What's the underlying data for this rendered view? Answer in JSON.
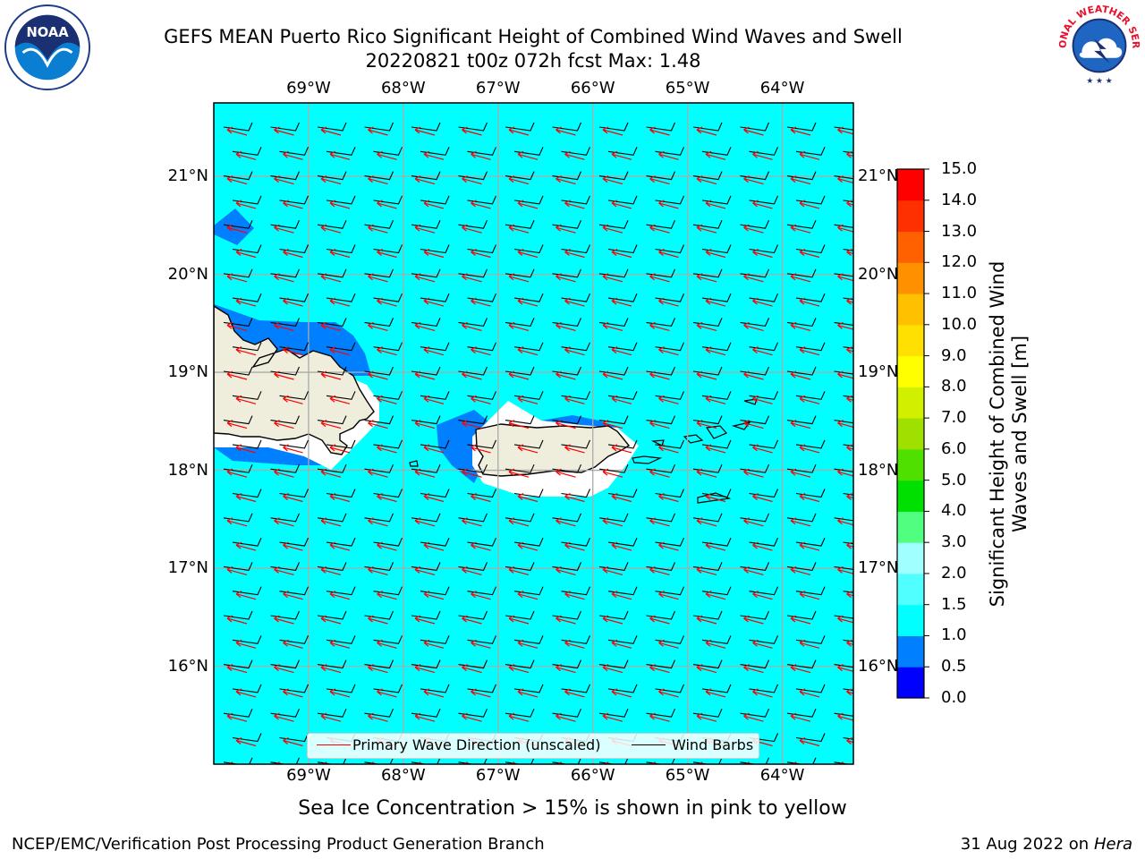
{
  "title": {
    "line1": "GEFS MEAN Puerto Rico Significant Height of Combined Wind Waves and Swell",
    "line2": "20220821 t00z 072h fcst   Max: 1.48"
  },
  "logos": {
    "left": {
      "icon": "noaa-logo-icon",
      "text": "NOAA"
    },
    "right": {
      "icon": "nws-logo-icon",
      "text": "NATIONAL WEATHER SERVICE"
    }
  },
  "map": {
    "lon_range": [
      -70.0,
      -63.25
    ],
    "lat_range": [
      15.0,
      21.75
    ],
    "lon_ticks": [
      {
        "value": -69,
        "label": "69°W"
      },
      {
        "value": -68,
        "label": "68°W"
      },
      {
        "value": -67,
        "label": "67°W"
      },
      {
        "value": -66,
        "label": "66°W"
      },
      {
        "value": -65,
        "label": "65°W"
      },
      {
        "value": -64,
        "label": "64°W"
      }
    ],
    "lat_ticks": [
      {
        "value": 21,
        "label": "21°N"
      },
      {
        "value": 20,
        "label": "20°N"
      },
      {
        "value": 19,
        "label": "19°N"
      },
      {
        "value": 18,
        "label": "18°N"
      },
      {
        "value": 17,
        "label": "17°N"
      },
      {
        "value": 16,
        "label": "16°N"
      }
    ],
    "gridlines": true,
    "ocean_color": "#00ffff",
    "land_color": "#efeedc",
    "wind_direction_from": "east",
    "wave_direction_from": "east-southeast"
  },
  "colorbar": {
    "label": "Significant Height of Combined Wind Waves and Swell [m]",
    "ticks": [
      "0.0",
      "0.5",
      "1.0",
      "1.5",
      "2.0",
      "3.0",
      "4.0",
      "5.0",
      "6.0",
      "7.0",
      "8.0",
      "9.0",
      "10.0",
      "11.0",
      "12.0",
      "13.0",
      "14.0",
      "15.0"
    ],
    "colors": [
      "#0000ff",
      "#0080ff",
      "#00ffff",
      "#50ffff",
      "#a0ffff",
      "#50ff80",
      "#00e000",
      "#50e000",
      "#a0e000",
      "#d0f000",
      "#ffff00",
      "#ffe000",
      "#ffc000",
      "#ff9000",
      "#ff6000",
      "#ff3000",
      "#ff0000"
    ]
  },
  "legend": {
    "items": [
      {
        "label": "Primary Wave Direction (unscaled)",
        "color": "#ff0000"
      },
      {
        "label": "Wind Barbs",
        "color": "#000000"
      }
    ]
  },
  "footnote": "Sea Ice Concentration > 15% is shown in pink to yellow",
  "footer": {
    "left": "NCEP/EMC/Verification Post Processing Product Generation Branch",
    "right_date": "31 Aug 2022 on",
    "right_host": "Hera"
  }
}
